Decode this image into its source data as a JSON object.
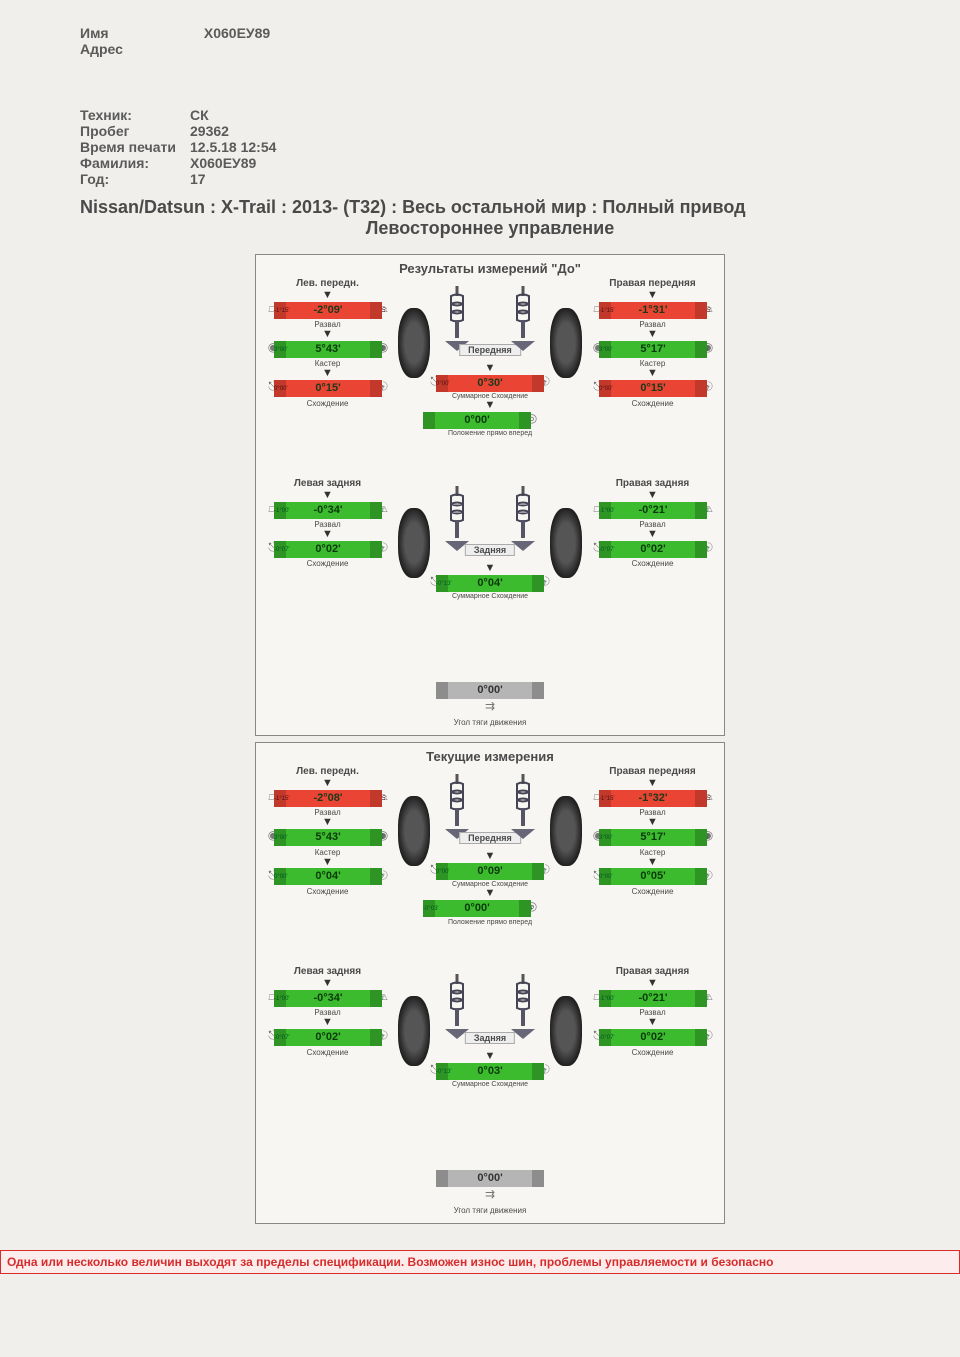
{
  "header": {
    "name_label": "Имя",
    "name_value": "X060EУ89",
    "address_label": "Адрес"
  },
  "info": {
    "tech_label": "Техник:",
    "tech": "СК",
    "mileage_label": "Пробег",
    "mileage": "29362",
    "print_label": "Время печати",
    "print": "12.5.18 12:54",
    "surname_label": "Фамилия:",
    "surname": "X060EУ89",
    "year_label": "Год:",
    "year": "17"
  },
  "vehicle": {
    "line1": "Nissan/Datsun : X-Trail : 2013-   (T32) : Весь остальной мир : Полный привод",
    "line2": "Левостороннее управление"
  },
  "labels": {
    "camber": "Развал",
    "caster": "Кастер",
    "toe": "Схождение",
    "total_toe": "Суммарное Схождение",
    "steer_ahead": "Положение прямо вперед",
    "thrust": "Угол тяги движения",
    "front": "Передняя",
    "rear": "Задняя",
    "fl": "Лев. передн.",
    "fr": "Правая передняя",
    "rl": "Левая задняя",
    "rr": "Правая задняя"
  },
  "panels": {
    "before": {
      "title": "Результаты измерений \"До\"",
      "front": {
        "left": {
          "camber": {
            "v": "-2°09'",
            "c": "red",
            "sl": "-1°15'",
            "sr": "-0°15'"
          },
          "caster": {
            "v": "5°43'",
            "c": "green",
            "sl": "3°00'",
            "sr": "5°45'"
          },
          "toe": {
            "v": "0°15'",
            "c": "red",
            "sl": "0°00'",
            "sr": "0°10'"
          }
        },
        "right": {
          "camber": {
            "v": "-1°31'",
            "c": "red",
            "sl": "-1°15'",
            "sr": "-0°15'"
          },
          "caster": {
            "v": "5°17'",
            "c": "green",
            "sl": "3°00'",
            "sr": "5°45'"
          },
          "toe": {
            "v": "0°15'",
            "c": "red",
            "sl": "0°00'",
            "sr": "0°10'"
          }
        },
        "total_toe": {
          "v": "0°30'",
          "c": "red",
          "sl": "0°00'",
          "sr": "0°20'"
        },
        "steer": {
          "v": "0°00'",
          "c": "green",
          "sl": "",
          "sr": ""
        }
      },
      "rear": {
        "left": {
          "camber": {
            "v": "-0°34'",
            "c": "green",
            "sl": "-1°00'",
            "sr": "0°20'"
          },
          "toe": {
            "v": "0°02'",
            "c": "green",
            "sl": "-0°07'",
            "sr": "0°10'"
          }
        },
        "right": {
          "camber": {
            "v": "-0°21'",
            "c": "green",
            "sl": "-1°00'",
            "sr": "0°20'"
          },
          "toe": {
            "v": "0°02'",
            "c": "green",
            "sl": "-0°07'",
            "sr": "0°10'"
          }
        },
        "total_toe": {
          "v": "0°04'",
          "c": "green",
          "sl": "-0°13'",
          "sr": "0°20'"
        },
        "thrust": {
          "v": "0°00'",
          "c": "gray"
        }
      }
    },
    "current": {
      "title": "Текущие измерения",
      "front": {
        "left": {
          "camber": {
            "v": "-2°08'",
            "c": "red",
            "sl": "-1°15'",
            "sr": "-0°15'"
          },
          "caster": {
            "v": "5°43'",
            "c": "green",
            "sl": "3°00'",
            "sr": "5°45'"
          },
          "toe": {
            "v": "0°04'",
            "c": "green",
            "sl": "0°00'",
            "sr": "0°10'"
          }
        },
        "right": {
          "camber": {
            "v": "-1°32'",
            "c": "red",
            "sl": "-1°15'",
            "sr": "-0°15'"
          },
          "caster": {
            "v": "5°17'",
            "c": "green",
            "sl": "3°00'",
            "sr": "5°45'"
          },
          "toe": {
            "v": "0°05'",
            "c": "green",
            "sl": "0°00'",
            "sr": "0°10'"
          }
        },
        "total_toe": {
          "v": "0°09'",
          "c": "green",
          "sl": "0°00'",
          "sr": "0°20'"
        },
        "steer": {
          "v": "0°00'",
          "c": "green",
          "sl": "-0°03'",
          "sr": "0°03'"
        }
      },
      "rear": {
        "left": {
          "camber": {
            "v": "-0°34'",
            "c": "green",
            "sl": "-1°00'",
            "sr": "0°20'"
          },
          "toe": {
            "v": "0°02'",
            "c": "green",
            "sl": "-0°07'",
            "sr": "0°10'"
          }
        },
        "right": {
          "camber": {
            "v": "-0°21'",
            "c": "green",
            "sl": "-1°00'",
            "sr": "0°20'"
          },
          "toe": {
            "v": "0°02'",
            "c": "green",
            "sl": "-0°07'",
            "sr": "0°10'"
          }
        },
        "total_toe": {
          "v": "0°03'",
          "c": "green",
          "sl": "-0°13'",
          "sr": "0°20'"
        },
        "thrust": {
          "v": "0°00'",
          "c": "gray"
        }
      }
    }
  },
  "warning": "Одна или несколько величин выходят за пределы спецификации. Возможен износ шин, проблемы управляемости и безопасно",
  "colors": {
    "red": "#e94434",
    "green": "#3dbb2f",
    "gray": "#b5b5b5",
    "page_bg": "#f0efeb",
    "border": "#888"
  }
}
